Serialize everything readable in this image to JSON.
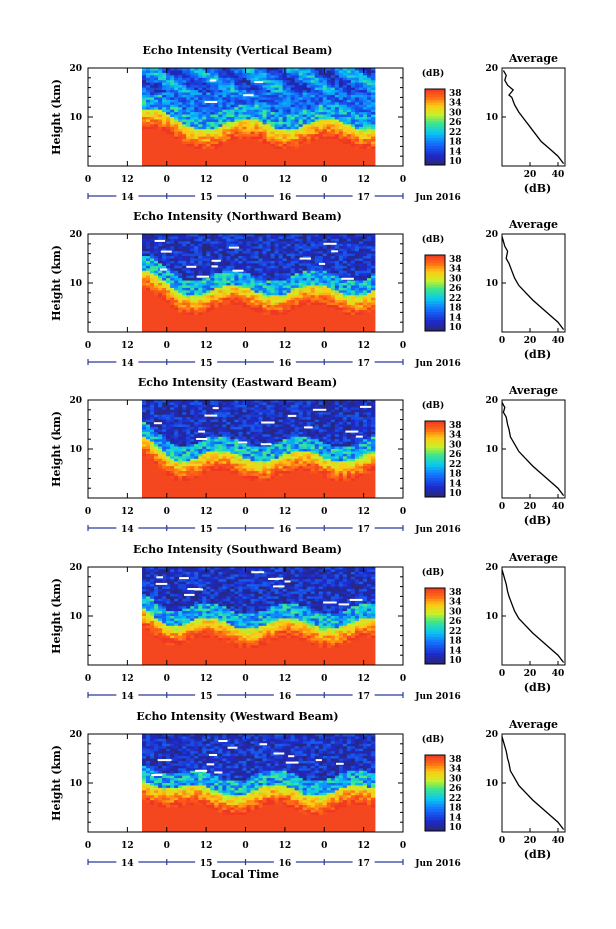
{
  "chart_data": {
    "type": "heatmap",
    "x_ticks": [
      "0",
      "12",
      "0",
      "12",
      "0",
      "12",
      "0",
      "12",
      "0"
    ],
    "day_labels": [
      "14",
      "15",
      "16",
      "17"
    ],
    "month_label": "Jun 2016",
    "xlabel": "Local Time",
    "ylabel": "Height (km)",
    "y_ticks": [
      "20",
      "10"
    ],
    "ylim": [
      0,
      20
    ],
    "colorbar": {
      "unit": "(dB)",
      "range": [
        10,
        38
      ],
      "ticks": [
        "38",
        "34",
        "30",
        "26",
        "22",
        "18",
        "14",
        "10"
      ]
    },
    "avg_title": "Average",
    "avg_xlabel": "(dB)",
    "panels": [
      {
        "title": "Echo Intensity (Vertical Beam)",
        "avg_x_ticks": [
          "20",
          "40"
        ],
        "avg_profile": [
          [
            44,
            0.5
          ],
          [
            40,
            2
          ],
          [
            34,
            3.5
          ],
          [
            28,
            5
          ],
          [
            24,
            6.5
          ],
          [
            20,
            8
          ],
          [
            16,
            9.5
          ],
          [
            12,
            11
          ],
          [
            9,
            12.5
          ],
          [
            7,
            14
          ],
          [
            5,
            14.5
          ],
          [
            8,
            15.5
          ],
          [
            4,
            16.5
          ],
          [
            2,
            17.5
          ],
          [
            3,
            18.5
          ],
          [
            1,
            19.5
          ]
        ]
      },
      {
        "title": "Echo Intensity (Northward Beam)",
        "avg_x_ticks": [
          "0",
          "20",
          "40"
        ],
        "avg_profile": [
          [
            44,
            0.5
          ],
          [
            40,
            2
          ],
          [
            34,
            3.5
          ],
          [
            28,
            5
          ],
          [
            22,
            6.5
          ],
          [
            17,
            8
          ],
          [
            12,
            9.5
          ],
          [
            9,
            11
          ],
          [
            7,
            12.5
          ],
          [
            5,
            14
          ],
          [
            3,
            15
          ],
          [
            4,
            16.5
          ],
          [
            2,
            17.5
          ],
          [
            1,
            18.5
          ],
          [
            0,
            19.5
          ]
        ]
      },
      {
        "title": "Echo Intensity (Eastward Beam)",
        "avg_x_ticks": [
          "0",
          "20",
          "40"
        ],
        "avg_profile": [
          [
            44,
            0.5
          ],
          [
            40,
            2
          ],
          [
            34,
            3.5
          ],
          [
            28,
            5
          ],
          [
            22,
            6.5
          ],
          [
            17,
            8
          ],
          [
            12,
            9.5
          ],
          [
            9,
            11
          ],
          [
            6,
            12.5
          ],
          [
            5,
            14
          ],
          [
            4,
            15
          ],
          [
            3,
            16.5
          ],
          [
            1,
            17.5
          ],
          [
            2,
            18.5
          ],
          [
            0,
            19.5
          ]
        ]
      },
      {
        "title": "Echo Intensity (Southward Beam)",
        "avg_x_ticks": [
          "0",
          "20",
          "40"
        ],
        "avg_profile": [
          [
            44,
            0.5
          ],
          [
            40,
            2
          ],
          [
            34,
            3.5
          ],
          [
            28,
            5
          ],
          [
            22,
            6.5
          ],
          [
            17,
            8
          ],
          [
            12,
            9.5
          ],
          [
            9,
            11
          ],
          [
            7,
            12.5
          ],
          [
            5,
            14
          ],
          [
            4,
            15
          ],
          [
            3,
            16.5
          ],
          [
            2,
            17.5
          ],
          [
            1,
            18.5
          ],
          [
            0,
            19.5
          ]
        ]
      },
      {
        "title": "Echo Intensity (Westward Beam)",
        "avg_x_ticks": [
          "0",
          "20",
          "40"
        ],
        "avg_profile": [
          [
            44,
            0.5
          ],
          [
            40,
            2
          ],
          [
            34,
            3.5
          ],
          [
            28,
            5
          ],
          [
            22,
            6.5
          ],
          [
            17,
            8
          ],
          [
            12,
            9.5
          ],
          [
            9,
            11
          ],
          [
            6,
            12.5
          ],
          [
            5,
            14
          ],
          [
            4,
            15
          ],
          [
            3,
            16.5
          ],
          [
            2,
            17.5
          ],
          [
            1,
            18.5
          ],
          [
            0,
            19.5
          ]
        ]
      }
    ]
  }
}
